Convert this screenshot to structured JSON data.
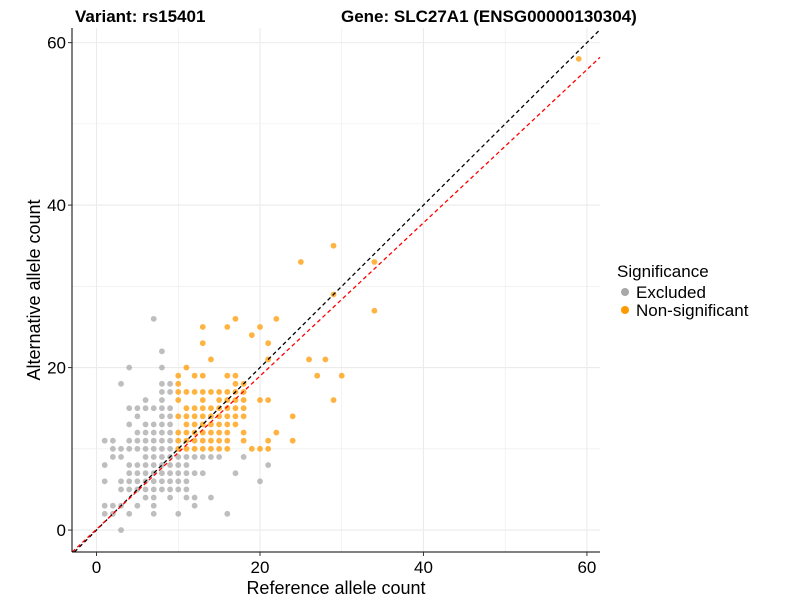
{
  "chart_data": {
    "type": "scatter",
    "title_left": "Variant: rs15401",
    "title_right": "Gene: SLC27A1 (ENSG00000130304)",
    "xlabel": "Reference allele count",
    "ylabel": "Alternative allele count",
    "xlim": [
      -3,
      61.6
    ],
    "ylim": [
      -2.7,
      61.8
    ],
    "xticks": [
      "0",
      "20",
      "40",
      "60"
    ],
    "yticks": [
      "0",
      "20",
      "40",
      "60"
    ],
    "grid": true,
    "legend": {
      "title": "Significance",
      "placement": "right"
    },
    "lines": [
      {
        "name": "identity",
        "color": "#000000",
        "slope": 1,
        "intercept": 0,
        "style": "dashed"
      },
      {
        "name": "fit",
        "color": "#ff0000",
        "slope": 0.943,
        "intercept": 0.1,
        "style": "dashed"
      }
    ],
    "series": [
      {
        "name": "Excluded",
        "color": "#a8a8a8",
        "points": [
          [
            7,
            26
          ],
          [
            8,
            22
          ],
          [
            4,
            20
          ],
          [
            8,
            20
          ],
          [
            3,
            18
          ],
          [
            8,
            18
          ],
          [
            9,
            18
          ],
          [
            8,
            17
          ],
          [
            9,
            17
          ],
          [
            6,
            16
          ],
          [
            8,
            16
          ],
          [
            4,
            15
          ],
          [
            5,
            15
          ],
          [
            6,
            15
          ],
          [
            7,
            15
          ],
          [
            8,
            15
          ],
          [
            9,
            15
          ],
          [
            5,
            14
          ],
          [
            8,
            14
          ],
          [
            9,
            14
          ],
          [
            4,
            13
          ],
          [
            6,
            13
          ],
          [
            7,
            13
          ],
          [
            8,
            13
          ],
          [
            9,
            13
          ],
          [
            5,
            12
          ],
          [
            6,
            12
          ],
          [
            7,
            12
          ],
          [
            8,
            12
          ],
          [
            9,
            12
          ],
          [
            1,
            11
          ],
          [
            2,
            11
          ],
          [
            4,
            11
          ],
          [
            5,
            11
          ],
          [
            6,
            11
          ],
          [
            7,
            11
          ],
          [
            8,
            11
          ],
          [
            9,
            11
          ],
          [
            2,
            10
          ],
          [
            3,
            10
          ],
          [
            4,
            10
          ],
          [
            5,
            10
          ],
          [
            6,
            10
          ],
          [
            7,
            10
          ],
          [
            8,
            10
          ],
          [
            9,
            10
          ],
          [
            2,
            9
          ],
          [
            3,
            9
          ],
          [
            6,
            9
          ],
          [
            7,
            9
          ],
          [
            8,
            9
          ],
          [
            9,
            9
          ],
          [
            10,
            9
          ],
          [
            11,
            9
          ],
          [
            12,
            9
          ],
          [
            13,
            9
          ],
          [
            14,
            9
          ],
          [
            15,
            9
          ],
          [
            18,
            9
          ],
          [
            1,
            8
          ],
          [
            4,
            8
          ],
          [
            5,
            8
          ],
          [
            6,
            8
          ],
          [
            7,
            8
          ],
          [
            8,
            8
          ],
          [
            9,
            8
          ],
          [
            10,
            8
          ],
          [
            11,
            8
          ],
          [
            21,
            8
          ],
          [
            4,
            7
          ],
          [
            5,
            7
          ],
          [
            6,
            7
          ],
          [
            7,
            7
          ],
          [
            8,
            7
          ],
          [
            9,
            7
          ],
          [
            10,
            7
          ],
          [
            11,
            7
          ],
          [
            12,
            7
          ],
          [
            13,
            7
          ],
          [
            17,
            7
          ],
          [
            1,
            6
          ],
          [
            3,
            6
          ],
          [
            4,
            6
          ],
          [
            5,
            6
          ],
          [
            6,
            6
          ],
          [
            7,
            6
          ],
          [
            8,
            6
          ],
          [
            9,
            6
          ],
          [
            10,
            6
          ],
          [
            11,
            6
          ],
          [
            20,
            6
          ],
          [
            3,
            5
          ],
          [
            4,
            5
          ],
          [
            5,
            5
          ],
          [
            6,
            5
          ],
          [
            7,
            5
          ],
          [
            8,
            5
          ],
          [
            9,
            5
          ],
          [
            10,
            5
          ],
          [
            11,
            5
          ],
          [
            6,
            4
          ],
          [
            7,
            4
          ],
          [
            9,
            4
          ],
          [
            11,
            4
          ],
          [
            12,
            4
          ],
          [
            14,
            4
          ],
          [
            1,
            3
          ],
          [
            2,
            3
          ],
          [
            3,
            3
          ],
          [
            5,
            3
          ],
          [
            7,
            3
          ],
          [
            12,
            3
          ],
          [
            1,
            2
          ],
          [
            2,
            2
          ],
          [
            4,
            2
          ],
          [
            7,
            2
          ],
          [
            10,
            2
          ],
          [
            16,
            2
          ],
          [
            3,
            0
          ]
        ]
      },
      {
        "name": "Non-significant",
        "color": "#ff9900",
        "points": [
          [
            59,
            58
          ],
          [
            29,
            35
          ],
          [
            25,
            33
          ],
          [
            34,
            33
          ],
          [
            29,
            29
          ],
          [
            34,
            27
          ],
          [
            17,
            26
          ],
          [
            22,
            26
          ],
          [
            13,
            25
          ],
          [
            16,
            25
          ],
          [
            20,
            25
          ],
          [
            19,
            24
          ],
          [
            13,
            23
          ],
          [
            21,
            23
          ],
          [
            14,
            21
          ],
          [
            21,
            21
          ],
          [
            26,
            21
          ],
          [
            28,
            21
          ],
          [
            11,
            20
          ],
          [
            10,
            19
          ],
          [
            12,
            19
          ],
          [
            13,
            19
          ],
          [
            16,
            19
          ],
          [
            17,
            19
          ],
          [
            27,
            19
          ],
          [
            30,
            19
          ],
          [
            10,
            18
          ],
          [
            17,
            18
          ],
          [
            18,
            18
          ],
          [
            10,
            17
          ],
          [
            11,
            17
          ],
          [
            12,
            17
          ],
          [
            13,
            17
          ],
          [
            14,
            17
          ],
          [
            15,
            17
          ],
          [
            16,
            17
          ],
          [
            17,
            17
          ],
          [
            18,
            17
          ],
          [
            10,
            16
          ],
          [
            13,
            16
          ],
          [
            15,
            16
          ],
          [
            16,
            16
          ],
          [
            17,
            16
          ],
          [
            18,
            16
          ],
          [
            20,
            16
          ],
          [
            21,
            16
          ],
          [
            29,
            16
          ],
          [
            11,
            15
          ],
          [
            12,
            15
          ],
          [
            13,
            15
          ],
          [
            14,
            15
          ],
          [
            15,
            15
          ],
          [
            16,
            15
          ],
          [
            17,
            15
          ],
          [
            18,
            15
          ],
          [
            10,
            14
          ],
          [
            11,
            14
          ],
          [
            12,
            14
          ],
          [
            13,
            14
          ],
          [
            14,
            14
          ],
          [
            15,
            14
          ],
          [
            16,
            14
          ],
          [
            17,
            14
          ],
          [
            18,
            14
          ],
          [
            24,
            14
          ],
          [
            11,
            13
          ],
          [
            12,
            13
          ],
          [
            13,
            13
          ],
          [
            14,
            13
          ],
          [
            15,
            13
          ],
          [
            16,
            13
          ],
          [
            17,
            13
          ],
          [
            10,
            12
          ],
          [
            11,
            12
          ],
          [
            12,
            12
          ],
          [
            13,
            12
          ],
          [
            14,
            12
          ],
          [
            15,
            12
          ],
          [
            16,
            12
          ],
          [
            18,
            12
          ],
          [
            22,
            12
          ],
          [
            10,
            11
          ],
          [
            11,
            11
          ],
          [
            12,
            11
          ],
          [
            13,
            11
          ],
          [
            14,
            11
          ],
          [
            15,
            11
          ],
          [
            16,
            11
          ],
          [
            18,
            11
          ],
          [
            21,
            11
          ],
          [
            24,
            11
          ],
          [
            10,
            10
          ],
          [
            11,
            10
          ],
          [
            12,
            10
          ],
          [
            13,
            10
          ],
          [
            14,
            10
          ],
          [
            15,
            10
          ],
          [
            16,
            10
          ],
          [
            19,
            10
          ],
          [
            20,
            10
          ],
          [
            21,
            10
          ]
        ]
      }
    ]
  }
}
